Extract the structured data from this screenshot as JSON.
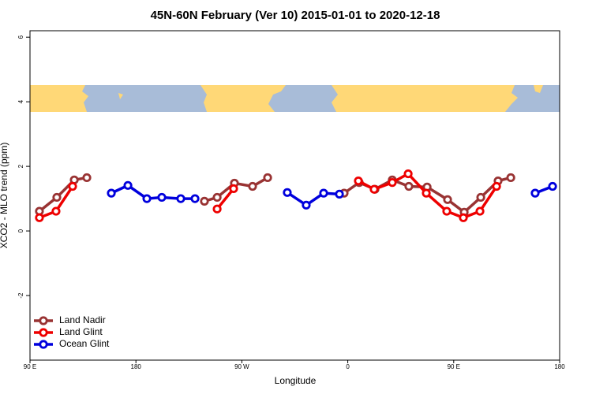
{
  "chart_data": {
    "type": "line",
    "title": "45N-60N February (Ver 10)   2015-01-01 to 2020-12-18",
    "x_label": "Longitude",
    "y_label": "XCO2 - MLO trend (ppm)",
    "xlim": [
      90,
      540
    ],
    "ylim": [
      -4,
      6.2
    ],
    "xticks": [
      {
        "value": 90,
        "label": "90 E"
      },
      {
        "value": 180,
        "label": "180"
      },
      {
        "value": 270,
        "label": "90 W"
      },
      {
        "value": 360,
        "label": "0"
      },
      {
        "value": 450,
        "label": "90 E"
      },
      {
        "value": 540,
        "label": "180"
      }
    ],
    "yticks": [
      -2,
      0,
      2,
      4,
      6
    ],
    "legend": "bottom-left",
    "series": [
      {
        "name": "Land Nadir",
        "color": "#993333",
        "x": [
          98,
          112.8,
          127.6,
          138.3,
          null,
          238.2,
          249,
          263.7,
          279.1,
          291.9,
          null,
          356.9,
          369.7,
          383.1,
          397.8,
          411.9,
          427.4,
          444.8,
          458.9,
          473,
          487.7,
          498.5
        ],
        "values": [
          0.61,
          1.04,
          1.58,
          1.65,
          null,
          0.92,
          1.04,
          1.48,
          1.38,
          1.65,
          null,
          1.17,
          1.5,
          1.29,
          1.58,
          1.38,
          1.36,
          0.97,
          0.58,
          1.04,
          1.55,
          1.65
        ]
      },
      {
        "name": "Land Glint",
        "color": "#ee0000",
        "x": [
          98,
          112.1,
          126.2,
          null,
          249,
          263,
          null,
          369,
          382.4,
          397.8,
          411.3,
          426.7,
          444.1,
          458.2,
          472.3,
          486.4
        ],
        "values": [
          0.41,
          0.61,
          1.38,
          null,
          0.68,
          1.31,
          null,
          1.55,
          1.29,
          1.5,
          1.77,
          1.17,
          0.61,
          0.41,
          0.61,
          1.38
        ]
      },
      {
        "name": "Ocean Glint",
        "color": "#0000dd",
        "x": [
          159.1,
          173.2,
          189.3,
          202,
          218.1,
          230.2,
          null,
          308.6,
          324.7,
          339.5,
          352.9,
          null,
          519.2,
          534
        ],
        "values": [
          1.17,
          1.41,
          1.0,
          1.04,
          1.0,
          1.0,
          null,
          1.19,
          0.8,
          1.17,
          1.14,
          null,
          1.17,
          1.38
        ]
      }
    ]
  }
}
